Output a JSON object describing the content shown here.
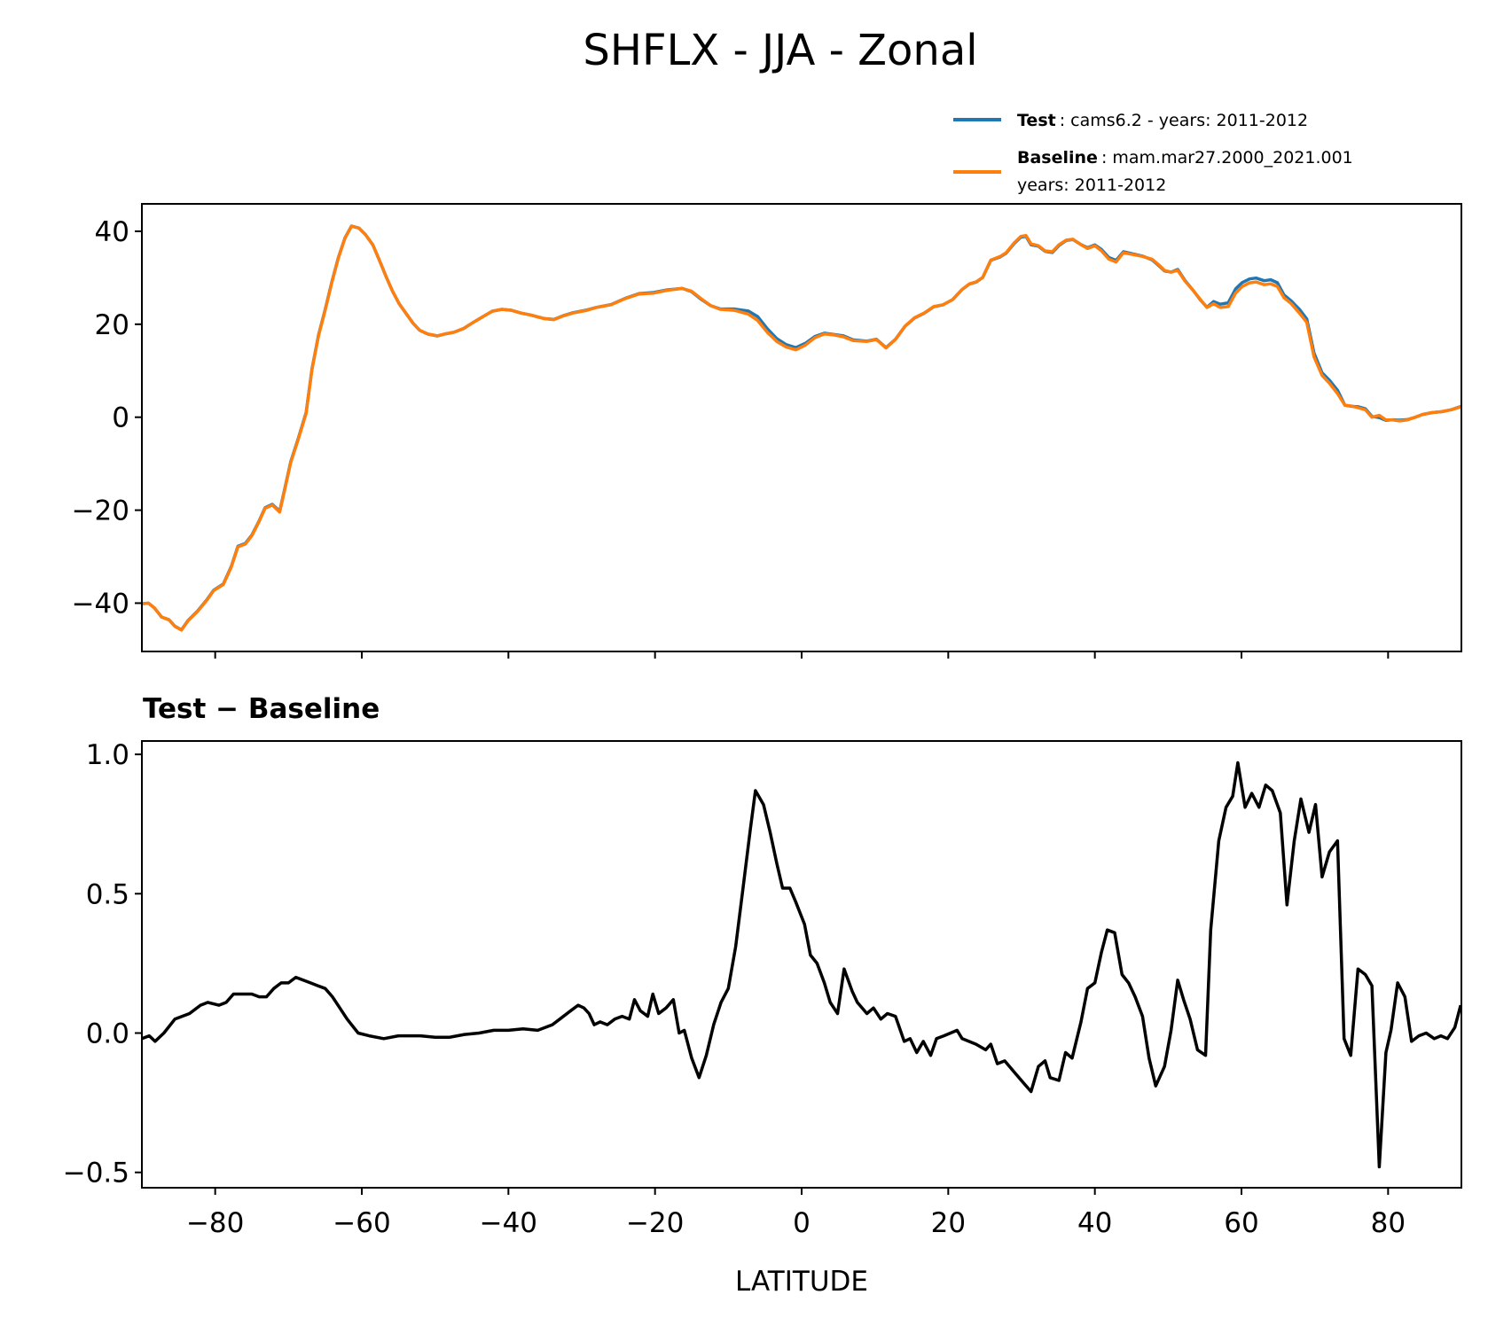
{
  "chart_data": [
    {
      "type": "line",
      "title": "SHFLX - JJA - Zonal",
      "xlabel": "",
      "ylabel": "",
      "xlim": [
        -90,
        90
      ],
      "ylim": [
        -50.4,
        45.9
      ],
      "xticks": [
        -80,
        -60,
        -40,
        -20,
        0,
        20,
        40,
        60,
        80
      ],
      "yticks": [
        -40,
        -20,
        0,
        20,
        40
      ],
      "ytick_labels": [
        "−40",
        "−20",
        "0",
        "20",
        "40"
      ],
      "legend": {
        "placement": "top-right, above axes",
        "entries": [
          {
            "bold": "Test",
            "text": ": cams6.2 - years: 2011-2012",
            "color": "#1f77b4"
          },
          {
            "bold": "Baseline",
            "text": ": mam.mar27.2000_2021.001",
            "text2": "years: 2011-2012",
            "color": "#ff7f0e"
          }
        ]
      },
      "series": [
        {
          "name": "Test",
          "color": "#1f77b4",
          "derived_from": "Baseline + Test − Baseline"
        },
        {
          "name": "Baseline",
          "color": "#ff7f0e",
          "x": [
            -90,
            -89.1,
            -88.3,
            -87.3,
            -86.3,
            -85.5,
            -84.6,
            -83.7,
            -82.4,
            -81.1,
            -80.2,
            -78.9,
            -77.8,
            -76.9,
            -75.9,
            -75,
            -74,
            -73.2,
            -72.2,
            -71.2,
            -70.5,
            -69.7,
            -68.7,
            -67.6,
            -66.8,
            -65.9,
            -65,
            -64.1,
            -63.2,
            -62.3,
            -61.4,
            -60.4,
            -59.5,
            -58.5,
            -57.6,
            -56.7,
            -55.8,
            -54.9,
            -53.9,
            -53,
            -52.1,
            -51,
            -49.7,
            -48.7,
            -47.4,
            -46.1,
            -44.8,
            -43.5,
            -42.2,
            -40.9,
            -39.6,
            -38.3,
            -37,
            -35.1,
            -33.8,
            -32.5,
            -31.2,
            -29.3,
            -28,
            -26,
            -24.1,
            -22.2,
            -20.2,
            -18.3,
            -16.3,
            -15,
            -13.7,
            -12.4,
            -11.1,
            -9.2,
            -7.3,
            -6,
            -4.7,
            -3.4,
            -2.1,
            -0.8,
            0.5,
            1.8,
            3.1,
            4.4,
            5.7,
            7,
            8.9,
            10.2,
            11.5,
            12.8,
            14.1,
            15.4,
            16.7,
            18,
            19.3,
            20.6,
            21.9,
            22.9,
            23.8,
            24.7,
            25.8,
            27.1,
            27.9,
            29,
            29.9,
            30.6,
            31.3,
            32.3,
            33.2,
            34.2,
            35.1,
            36.1,
            37,
            38.1,
            39,
            40,
            40.9,
            41.9,
            42.9,
            43.9,
            45.2,
            46.5,
            47.8,
            48.7,
            49.5,
            50.4,
            51.3,
            52.3,
            53.4,
            54.4,
            55.3,
            56.2,
            57.1,
            58.2,
            59.2,
            60.1,
            61.1,
            62,
            63.1,
            64,
            64.9,
            65.8,
            66.8,
            67.9,
            68.9,
            69.9,
            71,
            72,
            73.1,
            74.1,
            75,
            76,
            76.9,
            77.8,
            78.8,
            79.7,
            80.6,
            81.6,
            82.6,
            83.7,
            84.7,
            86,
            87.3,
            88.6,
            89.9
          ],
          "y": [
            -40.1,
            -40,
            -41,
            -43,
            -43.6,
            -45,
            -45.8,
            -43.8,
            -41.8,
            -39.3,
            -37.3,
            -36,
            -32.2,
            -27.9,
            -27.3,
            -25.5,
            -22.4,
            -19.6,
            -18.9,
            -20.4,
            -15.5,
            -9.8,
            -4.9,
            0.8,
            10.2,
            17.5,
            23,
            28.9,
            34.2,
            38.5,
            41.1,
            40.7,
            39.3,
            37.1,
            33.8,
            30.3,
            27.1,
            24.4,
            22.2,
            20.2,
            18.7,
            17.9,
            17.5,
            17.9,
            18.3,
            19.1,
            20.4,
            21.6,
            22.8,
            23.2,
            23,
            22.4,
            22,
            21.2,
            21,
            21.8,
            22.4,
            23,
            23.6,
            24.2,
            25.5,
            26.5,
            26.7,
            27.3,
            27.7,
            27.1,
            25.5,
            24,
            23.2,
            23,
            22.2,
            20.8,
            18.3,
            16.3,
            15.1,
            14.5,
            15.5,
            17.1,
            17.9,
            17.7,
            17.3,
            16.5,
            16.3,
            16.7,
            14.9,
            16.7,
            19.6,
            21.4,
            22.4,
            23.8,
            24.2,
            25.3,
            27.5,
            28.7,
            29.1,
            30.1,
            33.8,
            34.6,
            35.4,
            37.5,
            38.9,
            39.1,
            37.3,
            36.9,
            35.8,
            35.6,
            37.1,
            38.1,
            38.3,
            37.1,
            36.3,
            36.9,
            35.8,
            34,
            33.4,
            35.4,
            35,
            34.6,
            34,
            32.8,
            31.6,
            31.2,
            31.6,
            29.3,
            27.3,
            25.3,
            23.6,
            24.4,
            23.6,
            23.8,
            26.7,
            28.1,
            28.9,
            29.1,
            28.5,
            28.7,
            28.1,
            25.7,
            24.4,
            22.4,
            20.4,
            13,
            9,
            7.3,
            5.1,
            2.6,
            2.4,
            2,
            1.6,
            0,
            0.4,
            -0.6,
            -0.6,
            -0.8,
            -0.6,
            0,
            0.6,
            1,
            1.2,
            1.6,
            2.2
          ]
        }
      ]
    },
    {
      "type": "line",
      "title": "Test − Baseline",
      "xlabel": "LATITUDE",
      "ylabel": "",
      "xlim": [
        -90,
        90
      ],
      "ylim": [
        -0.555,
        1.048
      ],
      "xticks": [
        -80,
        -60,
        -40,
        -20,
        0,
        20,
        40,
        60,
        80
      ],
      "xtick_labels": [
        "−80",
        "−60",
        "−40",
        "−20",
        "0",
        "20",
        "40",
        "60",
        "80"
      ],
      "yticks": [
        -0.5,
        0.0,
        0.5,
        1.0
      ],
      "ytick_labels": [
        "−0.5",
        "0.0",
        "0.5",
        "1.0"
      ],
      "series": [
        {
          "name": "Test − Baseline",
          "color": "#000000",
          "x": [
            -90,
            -89,
            -88.2,
            -87,
            -85.5,
            -83.5,
            -82,
            -81,
            -79.5,
            -78.5,
            -77.5,
            -75,
            -74,
            -73,
            -72,
            -71,
            -70,
            -69,
            -68,
            -67,
            -66,
            -65,
            -64,
            -63,
            -62,
            -60.5,
            -59,
            -57,
            -55,
            -52,
            -50,
            -48,
            -46,
            -44,
            -42,
            -40,
            -38,
            -36,
            -34,
            -33,
            -31.5,
            -30.5,
            -29.7,
            -29,
            -28.3,
            -27.5,
            -26.5,
            -25.5,
            -24.5,
            -23.5,
            -22.8,
            -22,
            -21,
            -20.3,
            -19.5,
            -18.5,
            -17.5,
            -16.7,
            -16,
            -15,
            -14,
            -13,
            -12,
            -11,
            -10,
            -9,
            -8,
            -7,
            -6.3,
            -5.2,
            -4.3,
            -3.4,
            -2.6,
            -1.6,
            -0.8,
            0.4,
            1.2,
            2.1,
            3.1,
            3.9,
            4.9,
            5.8,
            6.9,
            7.6,
            8.9,
            9.8,
            10.8,
            11.7,
            12.8,
            14,
            14.8,
            15.7,
            16.6,
            17.6,
            18.4,
            19.4,
            21.2,
            21.9,
            23.8,
            25.1,
            25.8,
            26.7,
            27.7,
            29,
            30.3,
            31.3,
            32.3,
            33.2,
            33.9,
            35.1,
            36,
            36.9,
            38.1,
            39,
            40,
            40.9,
            41.7,
            42.7,
            43.7,
            44.6,
            45.5,
            46.5,
            47.4,
            48.3,
            49.5,
            50.4,
            51.3,
            52.1,
            53,
            54,
            55.1,
            55.8,
            56.9,
            57.9,
            58.8,
            59.5,
            60.5,
            61.4,
            62.4,
            63.3,
            64.2,
            65.3,
            66.2,
            67.2,
            68.1,
            69.2,
            70.1,
            71,
            72,
            73.1,
            74,
            74.9,
            75.9,
            76.9,
            77.8,
            78.8,
            79.7,
            80.4,
            81.3,
            82.3,
            83.2,
            84.2,
            85.2,
            86.3,
            87.2,
            88.1,
            89.1,
            89.9
          ],
          "y": [
            -0.02,
            -0.01,
            -0.03,
            0.0,
            0.05,
            0.07,
            0.1,
            0.11,
            0.1,
            0.11,
            0.14,
            0.14,
            0.13,
            0.13,
            0.16,
            0.18,
            0.18,
            0.2,
            0.19,
            0.18,
            0.17,
            0.16,
            0.13,
            0.09,
            0.05,
            0.0,
            -0.01,
            -0.02,
            -0.01,
            -0.01,
            -0.015,
            -0.015,
            -0.005,
            0.0,
            0.01,
            0.01,
            0.015,
            0.01,
            0.03,
            0.05,
            0.08,
            0.1,
            0.09,
            0.07,
            0.03,
            0.04,
            0.03,
            0.05,
            0.06,
            0.05,
            0.12,
            0.08,
            0.06,
            0.14,
            0.07,
            0.09,
            0.12,
            0.0,
            0.01,
            -0.09,
            -0.16,
            -0.08,
            0.03,
            0.11,
            0.16,
            0.31,
            0.52,
            0.73,
            0.87,
            0.82,
            0.72,
            0.61,
            0.52,
            0.52,
            0.47,
            0.39,
            0.28,
            0.25,
            0.18,
            0.11,
            0.07,
            0.23,
            0.15,
            0.11,
            0.07,
            0.09,
            0.05,
            0.07,
            0.06,
            -0.03,
            -0.02,
            -0.07,
            -0.03,
            -0.08,
            -0.02,
            -0.01,
            0.01,
            -0.02,
            -0.04,
            -0.06,
            -0.04,
            -0.11,
            -0.1,
            -0.14,
            -0.18,
            -0.21,
            -0.12,
            -0.1,
            -0.16,
            -0.17,
            -0.07,
            -0.09,
            0.04,
            0.16,
            0.18,
            0.29,
            0.37,
            0.36,
            0.21,
            0.18,
            0.13,
            0.06,
            -0.09,
            -0.19,
            -0.12,
            0.01,
            0.19,
            0.12,
            0.05,
            -0.06,
            -0.08,
            0.37,
            0.69,
            0.81,
            0.85,
            0.97,
            0.81,
            0.86,
            0.81,
            0.89,
            0.87,
            0.79,
            0.46,
            0.69,
            0.84,
            0.72,
            0.82,
            0.56,
            0.65,
            0.69,
            -0.02,
            -0.08,
            0.23,
            0.21,
            0.17,
            -0.48,
            -0.07,
            0.01,
            0.18,
            0.13,
            -0.03,
            -0.01,
            0.0,
            -0.02,
            -0.01,
            -0.02,
            0.02,
            0.1
          ]
        }
      ]
    }
  ]
}
